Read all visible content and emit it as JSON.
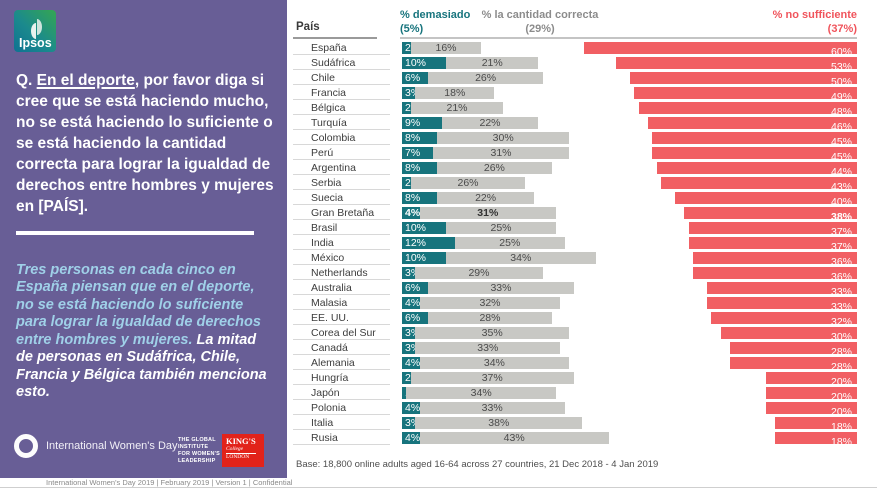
{
  "colors": {
    "purple": "#685e96",
    "teal": "#17747d",
    "gray_bar": "#c8c8c4",
    "red": "#f15f63",
    "red_text": "#f0545c",
    "blue_text": "#9fd0e8",
    "kings_red": "#e2231a"
  },
  "sidebar": {
    "logo_text": "Ipsos",
    "question_prefix": "Q. ",
    "question_underlined": "En el deporte",
    "question_rest": ", por favor diga si cree que se está haciendo mucho, no se está haciendo lo suficiente o se está haciendo la cantidad correcta para lograr la igualdad de derechos entre hombres y mujeres en [PAÍS].",
    "highlight_blue": "Tres personas en cada cinco en España piensan que en el deporte, no se está haciendo lo suficiente para lograr la igualdad de derechos entre hombres y mujeres.",
    "highlight_white": " La mitad de personas en Sudáfrica, Chile, Francia y Bélgica también menciona esto.",
    "iwd_logo_label": "International Women's Day",
    "giwl_logo_lines": [
      "THE GLOBAL",
      "INSTITUTE",
      "FOR WOMEN'S",
      "LEADERSHIP"
    ],
    "kings_logo_lines": [
      "KING'S",
      "College",
      "LONDON"
    ]
  },
  "chart": {
    "legend": {
      "pais_label": "País",
      "too_much": {
        "label": "% demasiado",
        "total": "(5%)"
      },
      "right_amount": {
        "label": "% la cantidad correcta",
        "total": "(29%)"
      },
      "not_enough": {
        "label": "% no sufficiente",
        "total": "(37%)"
      }
    }
  },
  "chart_data": {
    "type": "bar",
    "orientation": "horizontal",
    "title": "",
    "xlabel": "",
    "ylabel": "País",
    "legend_position": "top",
    "grid": false,
    "value_suffix": "%",
    "emphasized_category": "Gran Bretaña",
    "categories": [
      "España",
      "Sudáfrica",
      "Chile",
      "Francia",
      "Bélgica",
      "Turquía",
      "Colombia",
      "Perú",
      "Argentina",
      "Serbia",
      "Suecia",
      "Gran Bretaña",
      "Brasil",
      "India",
      "México",
      "Netherlands",
      "Australia",
      "Malasia",
      "EE. UU.",
      "Corea del Sur",
      "Canadá",
      "Alemania",
      "Hungría",
      "Japón",
      "Polonia",
      "Italia",
      "Rusia"
    ],
    "series": [
      {
        "name": "% demasiado",
        "overall": 5,
        "values": [
          2,
          10,
          6,
          3,
          2,
          9,
          8,
          7,
          8,
          2,
          8,
          4,
          10,
          12,
          10,
          3,
          6,
          4,
          6,
          3,
          3,
          4,
          2,
          1,
          4,
          3,
          4
        ]
      },
      {
        "name": "% la cantidad correcta",
        "overall": 29,
        "values": [
          16,
          21,
          26,
          18,
          21,
          22,
          30,
          31,
          26,
          26,
          22,
          31,
          25,
          25,
          34,
          29,
          33,
          32,
          28,
          35,
          33,
          34,
          37,
          34,
          33,
          38,
          43
        ]
      },
      {
        "name": "% no sufficiente",
        "overall": 37,
        "values": [
          60,
          53,
          50,
          49,
          48,
          46,
          45,
          45,
          44,
          43,
          40,
          38,
          37,
          37,
          36,
          36,
          33,
          33,
          32,
          30,
          28,
          28,
          20,
          20,
          20,
          18,
          18
        ]
      }
    ]
  },
  "footer": {
    "base_note": "Base: 18,800 online adults aged 16-64 across 27 countries,  21 Dec 2018 - 4 Jan  2019",
    "deck_note": "International Women's Day 2019 | February 2019 | Version 1 | Confidential"
  }
}
